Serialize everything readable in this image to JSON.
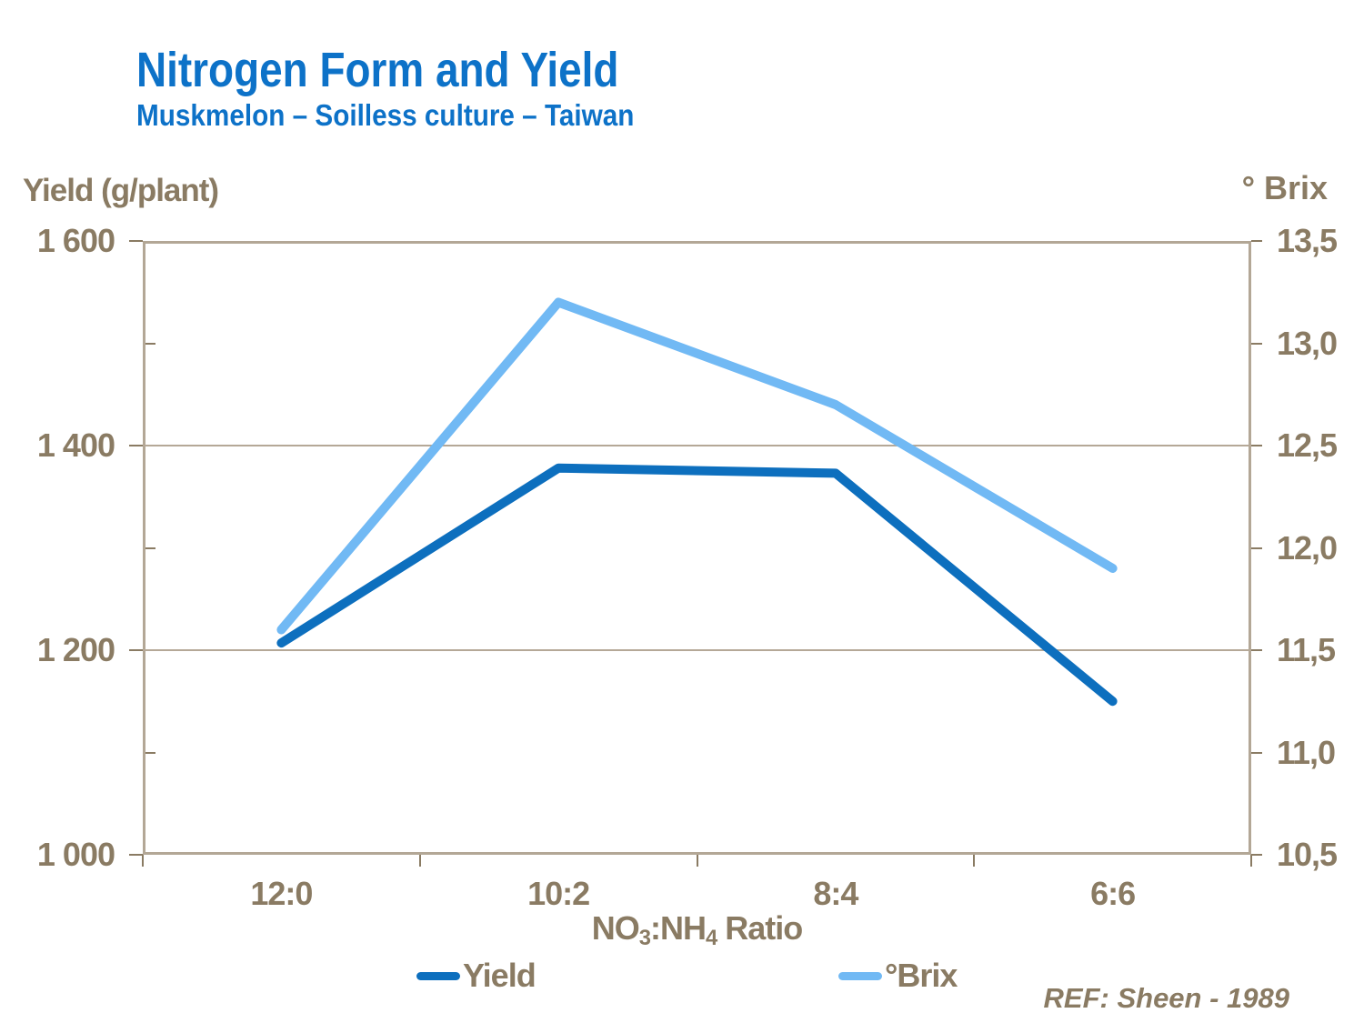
{
  "header": {
    "title": "Nitrogen Form and Yield",
    "subtitle": "Muskmelon – Soilless culture – Taiwan"
  },
  "chart_data": {
    "type": "line",
    "title": "Nitrogen Form and Yield",
    "subtitle": "Muskmelon – Soilless culture – Taiwan",
    "categories": [
      "12:0",
      "10:2",
      "8:4",
      "6:6"
    ],
    "series": [
      {
        "name": "Yield",
        "axis": "left",
        "color": "#0d6fbe",
        "values": [
          1207,
          1378,
          1373,
          1150
        ]
      },
      {
        "name": "°Brix",
        "axis": "right",
        "color": "#71b9f4",
        "values": [
          11.6,
          13.2,
          12.7,
          11.9
        ]
      }
    ],
    "left_axis": {
      "title": "Yield (g/plant)",
      "min": 1000,
      "max": 1600,
      "ticks": [
        {
          "label": "1 600",
          "value": 1600
        },
        {
          "label": "1 400",
          "value": 1400
        },
        {
          "label": "1 200",
          "value": 1200
        },
        {
          "label": "1 000",
          "value": 1000
        }
      ],
      "minor_ticks": [
        1500,
        1300,
        1100
      ]
    },
    "right_axis": {
      "title": "° Brix",
      "min": 10.5,
      "max": 13.5,
      "ticks": [
        {
          "label": "13,5",
          "value": 13.5
        },
        {
          "label": "13,0",
          "value": 13.0
        },
        {
          "label": "12,5",
          "value": 12.5
        },
        {
          "label": "12,0",
          "value": 12.0
        },
        {
          "label": "11,5",
          "value": 11.5
        },
        {
          "label": "11,0",
          "value": 11.0
        },
        {
          "label": "10,5",
          "value": 10.5
        }
      ]
    },
    "x_axis": {
      "title": "NO₃:NH₄ Ratio",
      "title_parts": {
        "pre": "NO",
        "sub1": "3",
        "mid": ":NH",
        "sub2": "4",
        "post": " Ratio"
      }
    },
    "grid": "horizontal-major-left-axis-only",
    "legend_position": "bottom"
  },
  "legend": {
    "items": [
      {
        "label": "Yield"
      },
      {
        "label": "°Brix"
      }
    ]
  },
  "footer": {
    "ref": "REF: Sheen - 1989"
  },
  "colors": {
    "title_blue": "#0d72c8",
    "axis_text": "#8a7b63",
    "plot_border": "#b3a796",
    "gridline": "#b5a897",
    "yield_line": "#0d6fbe",
    "brix_line": "#71b9f4"
  }
}
